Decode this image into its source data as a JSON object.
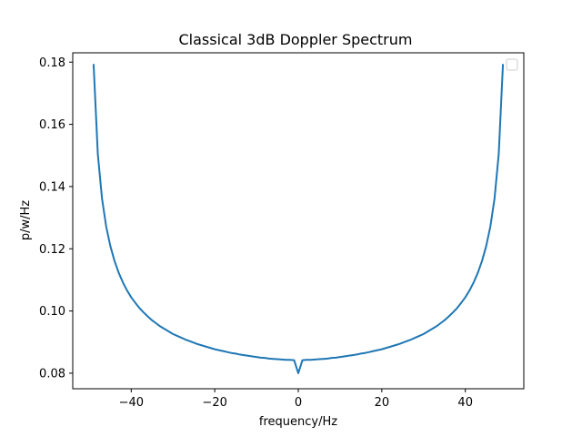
{
  "chart_data": {
    "type": "line",
    "title": "Classical 3dB Doppler Spectrum",
    "xlabel": "frequency/Hz",
    "ylabel": "p/w/Hz",
    "xlim": [
      -54,
      54
    ],
    "ylim": [
      0.075,
      0.183
    ],
    "xticks": [
      -40,
      -20,
      0,
      20,
      40
    ],
    "xtick_labels": [
      "−40",
      "−20",
      "0",
      "20",
      "40"
    ],
    "yticks": [
      0.08,
      0.1,
      0.12,
      0.14,
      0.16,
      0.18
    ],
    "ytick_labels": [
      "0.08",
      "0.10",
      "0.12",
      "0.14",
      "0.16",
      "0.18"
    ],
    "grid": false,
    "legend": {
      "location": "top-right",
      "entries": []
    },
    "series": [
      {
        "color": "#1f77b4",
        "x": [
          -49,
          -48,
          -47,
          -46,
          -45,
          -44,
          -43,
          -42,
          -41,
          -40,
          -39,
          -38,
          -37,
          -36,
          -35,
          -34,
          -33,
          -32,
          -31,
          -30,
          -29,
          -28,
          -27,
          -26,
          -25,
          -24,
          -23,
          -22,
          -21,
          -20,
          -19,
          -18,
          -17,
          -16,
          -15,
          -14,
          -13,
          -12,
          -11,
          -10,
          -9,
          -8,
          -7,
          -6,
          -5,
          -4,
          -3,
          -2,
          -1,
          0,
          1,
          2,
          3,
          4,
          5,
          6,
          7,
          8,
          9,
          10,
          11,
          12,
          13,
          14,
          15,
          16,
          17,
          18,
          19,
          20,
          21,
          22,
          23,
          24,
          25,
          26,
          27,
          28,
          29,
          30,
          31,
          32,
          33,
          34,
          35,
          36,
          37,
          38,
          39,
          40,
          41,
          42,
          43,
          44,
          45,
          46,
          47,
          48,
          49
        ],
        "y": [
          0.1791,
          0.1505,
          0.1362,
          0.1272,
          0.1209,
          0.1161,
          0.1123,
          0.1092,
          0.1066,
          0.1044,
          0.1026,
          0.1009,
          0.0995,
          0.0982,
          0.097,
          0.096,
          0.095,
          0.0942,
          0.0934,
          0.0926,
          0.092,
          0.0914,
          0.0908,
          0.0903,
          0.0898,
          0.0893,
          0.0889,
          0.0885,
          0.0881,
          0.0877,
          0.0874,
          0.0871,
          0.0868,
          0.0865,
          0.0863,
          0.086,
          0.0858,
          0.0856,
          0.0854,
          0.0852,
          0.085,
          0.0849,
          0.0847,
          0.0846,
          0.0845,
          0.0844,
          0.0843,
          0.0843,
          0.0842,
          0.08,
          0.0842,
          0.0843,
          0.0843,
          0.0844,
          0.0845,
          0.0846,
          0.0847,
          0.0849,
          0.085,
          0.0852,
          0.0854,
          0.0856,
          0.0858,
          0.086,
          0.0863,
          0.0865,
          0.0868,
          0.0871,
          0.0874,
          0.0877,
          0.0881,
          0.0885,
          0.0889,
          0.0893,
          0.0898,
          0.0903,
          0.0908,
          0.0914,
          0.092,
          0.0926,
          0.0934,
          0.0942,
          0.095,
          0.096,
          0.097,
          0.0982,
          0.0995,
          0.1009,
          0.1026,
          0.1044,
          0.1066,
          0.1092,
          0.1123,
          0.1161,
          0.1209,
          0.1272,
          0.1362,
          0.1505,
          0.1791
        ]
      }
    ]
  }
}
